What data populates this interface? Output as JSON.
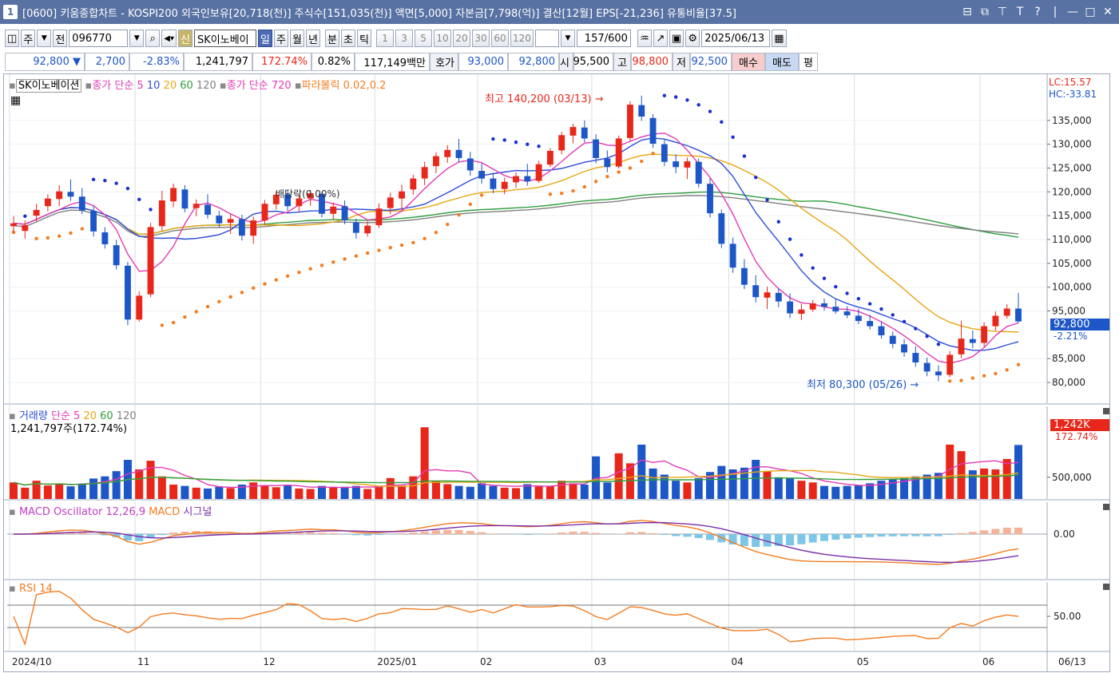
{
  "titlebar": {
    "window_number": "1",
    "title": "[0600] 키움종합차트 - KOSPI200 외국인보유[20,718(천)] 주식수[151,035(천)] 액면[5,000] 자본금[7,798(억)] 결산[12월] EPS[-21,236] 유통비율[37.5]"
  },
  "toolbar1": {
    "period_w": "주",
    "prev": "전",
    "code": "096770",
    "stock_name": "SK이노베이",
    "new_badge": "신",
    "tabs": [
      "일",
      "주",
      "월",
      "년",
      "분",
      "초",
      "틱"
    ],
    "active_tab": "일",
    "intervals": [
      "1",
      "3",
      "5",
      "10",
      "20",
      "30",
      "60",
      "120"
    ],
    "count": "157",
    "count_max": "/600",
    "date": "2025/06/13"
  },
  "quote": {
    "price": "92,800",
    "arrow": "▼",
    "change": "2,700",
    "change_pct": "-2.83%",
    "volume": "1,241,797",
    "vol_ratio": "172.74%",
    "turnover": "0.82%",
    "amount": "117,149백만",
    "hoga_label": "호가",
    "ask": "93,000",
    "bid": "92,800",
    "open_label": "시",
    "open": "95,500",
    "high_label": "고",
    "high": "98,800",
    "low_label": "저",
    "low": "92,500",
    "buy": "매수",
    "sell": "매도",
    "avg": "평"
  },
  "price_panel": {
    "name": "SK이노베이션",
    "ma_label": "종가 단순",
    "ma_periods": [
      "5",
      "10",
      "20",
      "60",
      "120"
    ],
    "ma2_label": "종가 단순",
    "ma2_period": "720",
    "sar_label": "파라볼릭 0.02,0.2",
    "dividend": "배당락(0.00%)",
    "high_mark": "최고 140,200 (03/13)",
    "low_mark": "최저 80,300 (05/26)",
    "lc": "LC:15.57",
    "hc": "HC:-33.81",
    "price_tag": "92,800",
    "price_pct": "-2.21%",
    "y_ticks": [
      "135,000",
      "130,000",
      "125,000",
      "120,000",
      "115,000",
      "110,000",
      "105,000",
      "100,000",
      "95,000",
      "85,000",
      "80,000"
    ]
  },
  "volume_panel": {
    "label": "거래량",
    "ma_label": "단순",
    "ma_periods": [
      "5",
      "20",
      "60",
      "120"
    ],
    "value": "1,241,797주(172.74%)",
    "tag": "1,242K",
    "tag_pct": "172.74%",
    "y_tick": "500,000"
  },
  "macd_panel": {
    "osc_label": "MACD Oscillator 12,26,9",
    "macd_label": "MACD",
    "signal_label": "시그널",
    "y_tick": "0.00"
  },
  "rsi_panel": {
    "label": "RSI 14",
    "y_tick": "50.00"
  },
  "x_axis": {
    "labels": [
      "2024/10",
      "11",
      "12",
      "2025/01",
      "02",
      "03",
      "04",
      "05",
      "06"
    ],
    "cursor_date": "06/13"
  },
  "colors": {
    "up": "#e8271a",
    "down": "#1d56c7",
    "ma5": "#e23bb5",
    "ma10": "#2d4ed8",
    "ma20": "#e8a613",
    "ma60": "#2f9e3d",
    "ma120": "#808080",
    "sar_up": "#f47c20",
    "sar_down": "#1a2fd1"
  },
  "chart_data": {
    "type": "candlestick",
    "series": [
      {
        "date": "2024-10-02",
        "ohlc": [
          112800,
          114900,
          111500,
          113400
        ],
        "volume": 380000
      },
      {
        "date": "2024-10-04",
        "ohlc": [
          111800,
          114000,
          110200,
          113000
        ],
        "volume": 260000
      },
      {
        "date": "2024-10-08",
        "ohlc": [
          115000,
          117500,
          113800,
          116200
        ],
        "volume": 420000
      },
      {
        "date": "2024-10-10",
        "ohlc": [
          117000,
          119500,
          115900,
          118600
        ],
        "volume": 310000
      },
      {
        "date": "2024-10-14",
        "ohlc": [
          118500,
          121400,
          117000,
          120100
        ],
        "volume": 360000
      },
      {
        "date": "2024-10-16",
        "ohlc": [
          120000,
          122600,
          118100,
          119000
        ],
        "volume": 290000
      },
      {
        "date": "2024-10-18",
        "ohlc": [
          119000,
          120800,
          115300,
          116100
        ],
        "volume": 350000
      },
      {
        "date": "2024-10-22",
        "ohlc": [
          116000,
          117100,
          110600,
          111700
        ],
        "volume": 470000
      },
      {
        "date": "2024-10-24",
        "ohlc": [
          111500,
          112600,
          108100,
          109000
        ],
        "volume": 520000
      },
      {
        "date": "2024-10-28",
        "ohlc": [
          108800,
          109900,
          103700,
          104600
        ],
        "volume": 640000
      },
      {
        "date": "2024-10-30",
        "ohlc": [
          104500,
          105300,
          92000,
          93200
        ],
        "volume": 900000
      },
      {
        "date": "2024-11-01",
        "ohlc": [
          93200,
          99100,
          92800,
          98200
        ],
        "volume": 680000
      },
      {
        "date": "2024-11-05",
        "ohlc": [
          98500,
          113500,
          97900,
          112600
        ],
        "volume": 880000
      },
      {
        "date": "2024-11-07",
        "ohlc": [
          112800,
          120200,
          111800,
          118200
        ],
        "volume": 520000
      },
      {
        "date": "2024-11-11",
        "ohlc": [
          118000,
          121700,
          116800,
          120800
        ],
        "volume": 330000
      },
      {
        "date": "2024-11-13",
        "ohlc": [
          120500,
          121400,
          115700,
          116500
        ],
        "volume": 300000
      },
      {
        "date": "2024-11-15",
        "ohlc": [
          116600,
          118400,
          114900,
          117500
        ],
        "volume": 260000
      },
      {
        "date": "2024-11-19",
        "ohlc": [
          117300,
          119500,
          114400,
          115200
        ],
        "volume": 240000
      },
      {
        "date": "2024-11-21",
        "ohlc": [
          115000,
          116000,
          112600,
          113400
        ],
        "volume": 280000
      },
      {
        "date": "2024-11-25",
        "ohlc": [
          113500,
          115400,
          111200,
          114300
        ],
        "volume": 250000
      },
      {
        "date": "2024-11-27",
        "ohlc": [
          114300,
          115200,
          109800,
          110800
        ],
        "volume": 330000
      },
      {
        "date": "2024-11-29",
        "ohlc": [
          110800,
          114800,
          109100,
          114000
        ],
        "volume": 380000
      },
      {
        "date": "2024-12-03",
        "ohlc": [
          114000,
          118300,
          113100,
          117500
        ],
        "volume": 300000
      },
      {
        "date": "2024-12-05",
        "ohlc": [
          117400,
          120100,
          116300,
          119400
        ],
        "volume": 270000
      },
      {
        "date": "2024-12-09",
        "ohlc": [
          119500,
          120500,
          116000,
          117000
        ],
        "volume": 320000
      },
      {
        "date": "2024-12-11",
        "ohlc": [
          117000,
          119500,
          115800,
          118600
        ],
        "volume": 240000
      },
      {
        "date": "2024-12-13",
        "ohlc": [
          118600,
          120400,
          117100,
          119700
        ],
        "volume": 230000
      },
      {
        "date": "2024-12-17",
        "ohlc": [
          119600,
          120000,
          114600,
          115400
        ],
        "volume": 300000
      },
      {
        "date": "2024-12-19",
        "ohlc": [
          115400,
          117700,
          114200,
          116900
        ],
        "volume": 260000
      },
      {
        "date": "2024-12-23",
        "ohlc": [
          117000,
          118200,
          113200,
          114000
        ],
        "volume": 280000
      },
      {
        "date": "2024-12-26",
        "ohlc": [
          113600,
          114400,
          110200,
          111400
        ],
        "volume": 300000
      },
      {
        "date": "2024-12-30",
        "ohlc": [
          111300,
          113800,
          110600,
          112900
        ],
        "volume": 230000
      },
      {
        "date": "2025-01-02",
        "ohlc": [
          113000,
          117600,
          112400,
          116500
        ],
        "volume": 300000
      },
      {
        "date": "2025-01-06",
        "ohlc": [
          116600,
          119800,
          115300,
          118800
        ],
        "volume": 480000
      },
      {
        "date": "2025-01-08",
        "ohlc": [
          118600,
          121500,
          116100,
          120100
        ],
        "volume": 300000
      },
      {
        "date": "2025-01-10",
        "ohlc": [
          120500,
          123600,
          119400,
          122800
        ],
        "volume": 520000
      },
      {
        "date": "2025-01-14",
        "ohlc": [
          122800,
          126300,
          121400,
          125200
        ],
        "volume": 1650000
      },
      {
        "date": "2025-01-16",
        "ohlc": [
          125400,
          128300,
          123900,
          127500
        ],
        "volume": 420000
      },
      {
        "date": "2025-01-20",
        "ohlc": [
          127300,
          129800,
          126100,
          128800
        ],
        "volume": 340000
      },
      {
        "date": "2025-01-22",
        "ohlc": [
          128800,
          131100,
          126200,
          127100
        ],
        "volume": 300000
      },
      {
        "date": "2025-01-24",
        "ohlc": [
          127000,
          128400,
          123400,
          124500
        ],
        "volume": 280000
      },
      {
        "date": "2025-02-03",
        "ohlc": [
          124400,
          126000,
          121700,
          122800
        ],
        "volume": 360000
      },
      {
        "date": "2025-02-05",
        "ohlc": [
          122800,
          124000,
          119700,
          120600
        ],
        "volume": 300000
      },
      {
        "date": "2025-02-07",
        "ohlc": [
          120600,
          123000,
          119500,
          122100
        ],
        "volume": 260000
      },
      {
        "date": "2025-02-11",
        "ohlc": [
          122000,
          124100,
          120800,
          123300
        ],
        "volume": 250000
      },
      {
        "date": "2025-02-13",
        "ohlc": [
          123300,
          125900,
          121300,
          122200
        ],
        "volume": 340000
      },
      {
        "date": "2025-02-17",
        "ohlc": [
          122300,
          126500,
          121900,
          125800
        ],
        "volume": 310000
      },
      {
        "date": "2025-02-19",
        "ohlc": [
          125700,
          129200,
          125200,
          128600
        ],
        "volume": 300000
      },
      {
        "date": "2025-02-21",
        "ohlc": [
          128700,
          132600,
          127900,
          131900
        ],
        "volume": 420000
      },
      {
        "date": "2025-02-25",
        "ohlc": [
          131800,
          134300,
          130200,
          133600
        ],
        "volume": 360000
      },
      {
        "date": "2025-02-27",
        "ohlc": [
          133500,
          135000,
          130400,
          131200
        ],
        "volume": 330000
      },
      {
        "date": "2025-03-04",
        "ohlc": [
          131000,
          132100,
          126000,
          127100
        ],
        "volume": 980000
      },
      {
        "date": "2025-03-06",
        "ohlc": [
          127000,
          128700,
          124100,
          125200
        ],
        "volume": 380000
      },
      {
        "date": "2025-03-10",
        "ohlc": [
          125300,
          131800,
          124900,
          131200
        ],
        "volume": 1050000
      },
      {
        "date": "2025-03-12",
        "ohlc": [
          131300,
          139000,
          130700,
          138300
        ],
        "volume": 820000
      },
      {
        "date": "2025-03-13",
        "ohlc": [
          138200,
          140200,
          134900,
          135800
        ],
        "volume": 1250000
      },
      {
        "date": "2025-03-17",
        "ohlc": [
          135500,
          136300,
          129200,
          130100
        ],
        "volume": 700000
      },
      {
        "date": "2025-03-19",
        "ohlc": [
          130000,
          131000,
          125400,
          126300
        ],
        "volume": 560000
      },
      {
        "date": "2025-03-21",
        "ohlc": [
          126400,
          127900,
          123900,
          125200
        ],
        "volume": 420000
      },
      {
        "date": "2025-03-25",
        "ohlc": [
          125100,
          127200,
          122700,
          126400
        ],
        "volume": 380000
      },
      {
        "date": "2025-03-27",
        "ohlc": [
          126300,
          127000,
          120900,
          121700
        ],
        "volume": 480000
      },
      {
        "date": "2025-03-31",
        "ohlc": [
          121700,
          122900,
          114600,
          115500
        ],
        "volume": 620000
      },
      {
        "date": "2025-04-02",
        "ohlc": [
          115500,
          116300,
          108200,
          109100
        ],
        "volume": 760000
      },
      {
        "date": "2025-04-04",
        "ohlc": [
          109100,
          110400,
          103000,
          104100
        ],
        "volume": 680000
      },
      {
        "date": "2025-04-08",
        "ohlc": [
          104000,
          105900,
          99600,
          100500
        ],
        "volume": 720000
      },
      {
        "date": "2025-04-10",
        "ohlc": [
          100400,
          102500,
          96800,
          97900
        ],
        "volume": 900000
      },
      {
        "date": "2025-04-14",
        "ohlc": [
          97800,
          100100,
          95400,
          98900
        ],
        "volume": 640000
      },
      {
        "date": "2025-04-16",
        "ohlc": [
          98800,
          99800,
          95800,
          97000
        ],
        "volume": 500000
      },
      {
        "date": "2025-04-18",
        "ohlc": [
          97000,
          98700,
          93500,
          94500
        ],
        "volume": 480000
      },
      {
        "date": "2025-04-22",
        "ohlc": [
          94400,
          96500,
          93100,
          95300
        ],
        "volume": 420000
      },
      {
        "date": "2025-04-24",
        "ohlc": [
          95300,
          97300,
          94800,
          96600
        ],
        "volume": 380000
      },
      {
        "date": "2025-04-28",
        "ohlc": [
          96600,
          97600,
          95100,
          95900
        ],
        "volume": 300000
      },
      {
        "date": "2025-04-30",
        "ohlc": [
          95900,
          97500,
          94400,
          94900
        ],
        "volume": 280000
      },
      {
        "date": "2025-05-02",
        "ohlc": [
          94900,
          96000,
          93500,
          94100
        ],
        "volume": 300000
      },
      {
        "date": "2025-05-07",
        "ohlc": [
          94000,
          95400,
          92200,
          92900
        ],
        "volume": 320000
      },
      {
        "date": "2025-05-09",
        "ohlc": [
          92900,
          94200,
          91100,
          91800
        ],
        "volume": 360000
      },
      {
        "date": "2025-05-13",
        "ohlc": [
          91800,
          92800,
          89200,
          89900
        ],
        "volume": 420000
      },
      {
        "date": "2025-05-15",
        "ohlc": [
          89800,
          90700,
          87200,
          88100
        ],
        "volume": 450000
      },
      {
        "date": "2025-05-19",
        "ohlc": [
          88000,
          89100,
          85400,
          86300
        ],
        "volume": 480000
      },
      {
        "date": "2025-05-21",
        "ohlc": [
          86200,
          87600,
          83300,
          84200
        ],
        "volume": 520000
      },
      {
        "date": "2025-05-23",
        "ohlc": [
          84100,
          85200,
          81300,
          82300
        ],
        "volume": 560000
      },
      {
        "date": "2025-05-26",
        "ohlc": [
          82300,
          83600,
          80300,
          81500
        ],
        "volume": 600000
      },
      {
        "date": "2025-05-28",
        "ohlc": [
          81600,
          86600,
          81100,
          85800
        ],
        "volume": 1250000
      },
      {
        "date": "2025-05-30",
        "ohlc": [
          85900,
          92900,
          85100,
          89200
        ],
        "volume": 1100000
      },
      {
        "date": "2025-06-02",
        "ohlc": [
          89100,
          90900,
          87200,
          88300
        ],
        "volume": 660000
      },
      {
        "date": "2025-06-05",
        "ohlc": [
          88300,
          92600,
          87500,
          91800
        ],
        "volume": 700000
      },
      {
        "date": "2025-06-09",
        "ohlc": [
          91800,
          94900,
          90900,
          94000
        ],
        "volume": 680000
      },
      {
        "date": "2025-06-11",
        "ohlc": [
          94000,
          96400,
          93400,
          95500
        ],
        "volume": 920000
      },
      {
        "date": "2025-06-13",
        "ohlc": [
          95500,
          98800,
          92500,
          92800
        ],
        "volume": 1241797
      }
    ],
    "ylim": [
      78000,
      142000
    ],
    "volume_ylim": [
      0,
      1800000
    ]
  }
}
